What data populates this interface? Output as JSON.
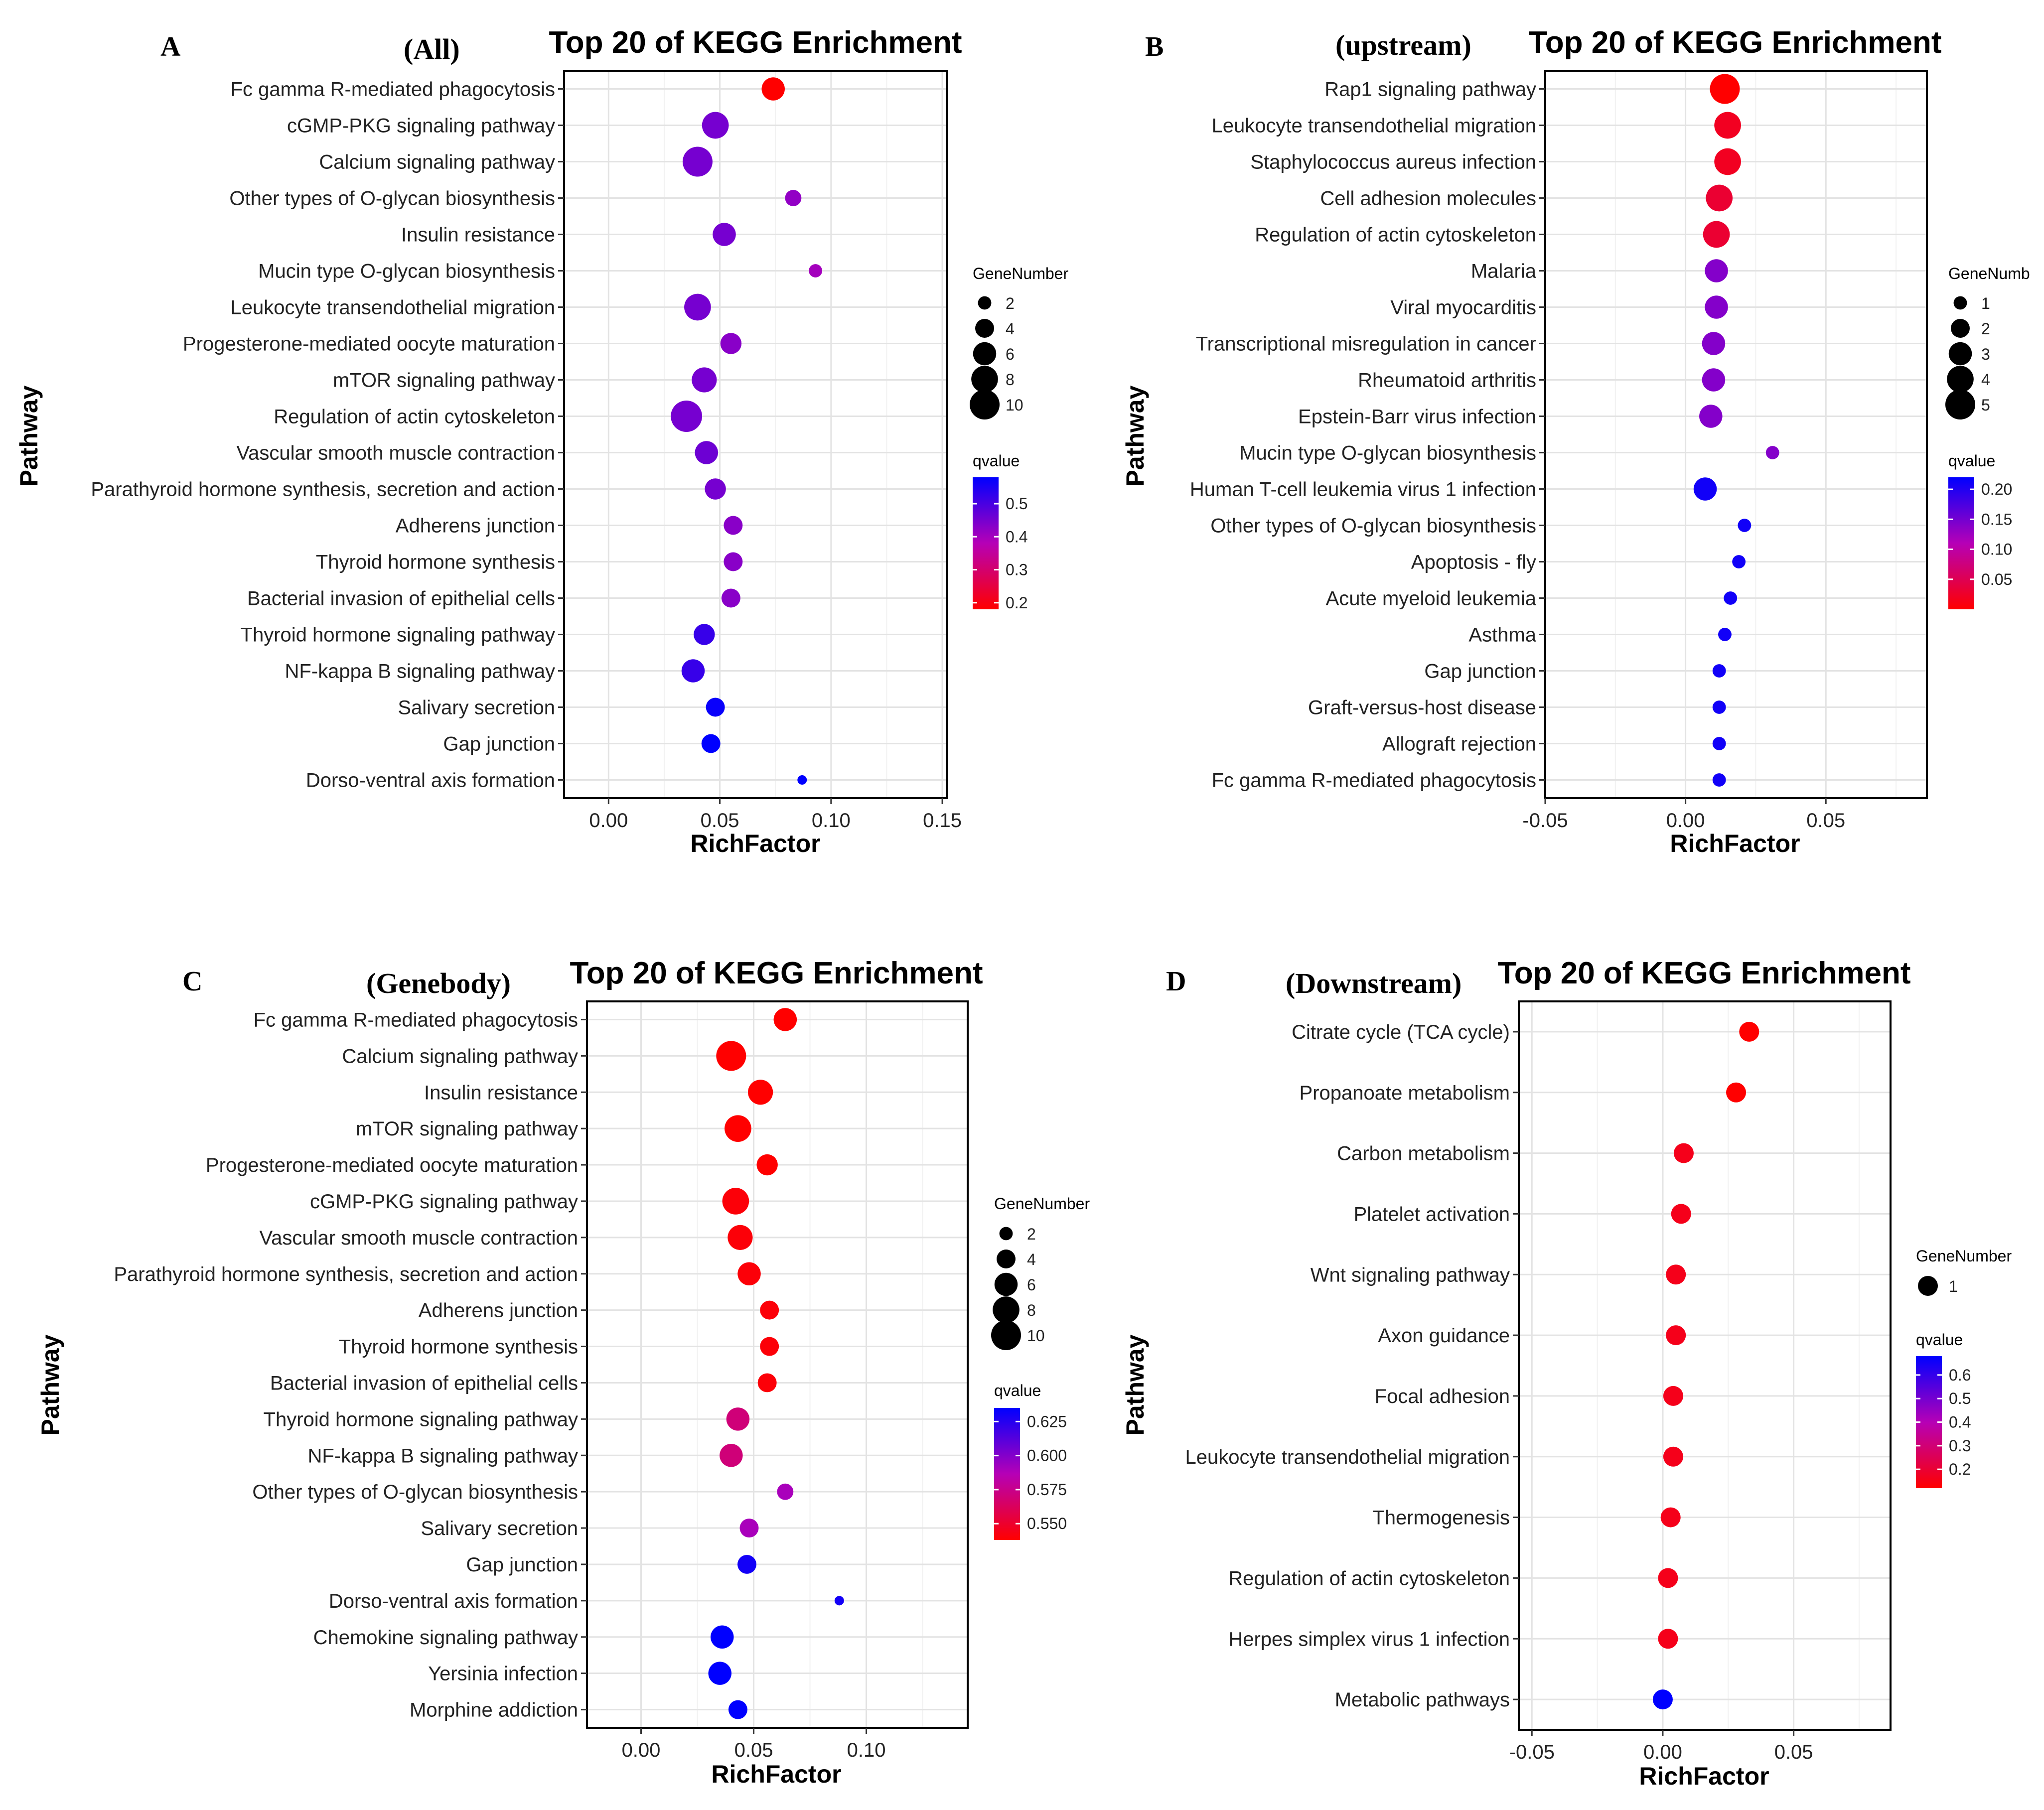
{
  "chart_data": [
    {
      "type": "scatter",
      "panel_letter": "A",
      "panel_subtitle": "(All)",
      "title": "Top 20 of KEGG Enrichment",
      "xlabel": "RichFactor",
      "ylabel": "Pathway",
      "xlim": [
        -0.02,
        0.152
      ],
      "xticks": [
        0.0,
        0.05,
        0.1,
        0.15
      ],
      "xtick_labels": [
        "0.00",
        "0.05",
        "0.10",
        "0.15"
      ],
      "size_legend": {
        "title": "GeneNumber",
        "values": [
          2,
          4,
          6,
          8,
          10
        ],
        "labels": [
          "2",
          "4",
          "6",
          "8",
          "10"
        ],
        "max": 10
      },
      "color_legend": {
        "title": "qvalue",
        "min": 0.18,
        "max": 0.58,
        "ticks": [
          0.2,
          0.3,
          0.4,
          0.5
        ],
        "labels": [
          "0.2",
          "0.3",
          "0.4",
          "0.5"
        ]
      },
      "points": [
        {
          "pathway": "Fc gamma R-mediated phagocytosis",
          "rich": 0.074,
          "gene": 6,
          "q": 0.18
        },
        {
          "pathway": "cGMP-PKG signaling pathway",
          "rich": 0.048,
          "gene": 8,
          "q": 0.45
        },
        {
          "pathway": "Calcium signaling pathway",
          "rich": 0.04,
          "gene": 10,
          "q": 0.45
        },
        {
          "pathway": "Other types of O-glycan biosynthesis",
          "rich": 0.083,
          "gene": 3,
          "q": 0.42
        },
        {
          "pathway": "Insulin resistance",
          "rich": 0.052,
          "gene": 6,
          "q": 0.45
        },
        {
          "pathway": "Mucin type O-glycan biosynthesis",
          "rich": 0.093,
          "gene": 2,
          "q": 0.4
        },
        {
          "pathway": "Leukocyte transendothelial migration",
          "rich": 0.04,
          "gene": 8,
          "q": 0.45
        },
        {
          "pathway": "Progesterone-mediated oocyte maturation",
          "rich": 0.055,
          "gene": 5,
          "q": 0.43
        },
        {
          "pathway": "mTOR signaling pathway",
          "rich": 0.043,
          "gene": 7,
          "q": 0.45
        },
        {
          "pathway": "Regulation of actin cytoskeleton",
          "rich": 0.035,
          "gene": 11,
          "q": 0.45
        },
        {
          "pathway": "Vascular smooth muscle contraction",
          "rich": 0.044,
          "gene": 6,
          "q": 0.46
        },
        {
          "pathway": "Parathyroid hormone synthesis, secretion and action",
          "rich": 0.048,
          "gene": 5,
          "q": 0.45
        },
        {
          "pathway": "Adherens junction",
          "rich": 0.056,
          "gene": 4,
          "q": 0.43
        },
        {
          "pathway": "Thyroid hormone synthesis",
          "rich": 0.056,
          "gene": 4,
          "q": 0.43
        },
        {
          "pathway": "Bacterial invasion of epithelial cells",
          "rich": 0.055,
          "gene": 4,
          "q": 0.43
        },
        {
          "pathway": "Thyroid hormone signaling pathway",
          "rich": 0.043,
          "gene": 5,
          "q": 0.52
        },
        {
          "pathway": "NF-kappa B signaling pathway",
          "rich": 0.038,
          "gene": 6,
          "q": 0.52
        },
        {
          "pathway": "Salivary secretion",
          "rich": 0.048,
          "gene": 4,
          "q": 0.57
        },
        {
          "pathway": "Gap junction",
          "rich": 0.046,
          "gene": 4,
          "q": 0.58
        },
        {
          "pathway": "Dorso-ventral axis formation",
          "rich": 0.087,
          "gene": 1,
          "q": 0.58
        }
      ]
    },
    {
      "type": "scatter",
      "panel_letter": "B",
      "panel_subtitle": "(upstream)",
      "title": "Top 20 of KEGG Enrichment",
      "xlabel": "RichFactor",
      "ylabel": "Pathway",
      "xlim": [
        -0.05,
        0.086
      ],
      "xticks": [
        -0.05,
        0.0,
        0.05
      ],
      "xtick_labels": [
        "-0.05",
        "0.00",
        "0.05"
      ],
      "size_legend": {
        "title": "GeneNumb",
        "values": [
          1,
          2,
          3,
          4,
          5
        ],
        "labels": [
          "1",
          "2",
          "3",
          "4",
          "5"
        ],
        "max": 5
      },
      "color_legend": {
        "title": "qvalue",
        "min": 0.0,
        "max": 0.22,
        "ticks": [
          0.05,
          0.1,
          0.15,
          0.2
        ],
        "labels": [
          "0.05",
          "0.10",
          "0.15",
          "0.20"
        ]
      },
      "points": [
        {
          "pathway": "Rap1 signaling pathway",
          "rich": 0.014,
          "gene": 5,
          "q": 0.0
        },
        {
          "pathway": "Leukocyte transendothelial migration",
          "rich": 0.015,
          "gene": 4,
          "q": 0.02
        },
        {
          "pathway": "Staphylococcus aureus infection",
          "rich": 0.015,
          "gene": 4,
          "q": 0.02
        },
        {
          "pathway": "Cell adhesion molecules",
          "rich": 0.012,
          "gene": 4,
          "q": 0.03
        },
        {
          "pathway": "Regulation of actin cytoskeleton",
          "rich": 0.011,
          "gene": 4,
          "q": 0.03
        },
        {
          "pathway": "Malaria",
          "rich": 0.011,
          "gene": 3,
          "q": 0.14
        },
        {
          "pathway": "Viral myocarditis",
          "rich": 0.011,
          "gene": 3,
          "q": 0.14
        },
        {
          "pathway": "Transcriptional misregulation in cancer",
          "rich": 0.01,
          "gene": 3,
          "q": 0.14
        },
        {
          "pathway": "Rheumatoid arthritis",
          "rich": 0.01,
          "gene": 3,
          "q": 0.14
        },
        {
          "pathway": "Epstein-Barr virus infection",
          "rich": 0.009,
          "gene": 3,
          "q": 0.14
        },
        {
          "pathway": "Mucin type O-glycan biosynthesis",
          "rich": 0.031,
          "gene": 1,
          "q": 0.14
        },
        {
          "pathway": "Human T-cell leukemia virus 1 infection",
          "rich": 0.007,
          "gene": 3,
          "q": 0.21
        },
        {
          "pathway": "Other types of O-glycan biosynthesis",
          "rich": 0.021,
          "gene": 1,
          "q": 0.21
        },
        {
          "pathway": "Apoptosis - fly",
          "rich": 0.019,
          "gene": 1,
          "q": 0.21
        },
        {
          "pathway": "Acute myeloid leukemia",
          "rich": 0.016,
          "gene": 1,
          "q": 0.21
        },
        {
          "pathway": "Asthma",
          "rich": 0.014,
          "gene": 1,
          "q": 0.21
        },
        {
          "pathway": "Gap junction",
          "rich": 0.012,
          "gene": 1,
          "q": 0.21
        },
        {
          "pathway": "Graft-versus-host disease",
          "rich": 0.012,
          "gene": 1,
          "q": 0.21
        },
        {
          "pathway": "Allograft rejection",
          "rich": 0.012,
          "gene": 1,
          "q": 0.21
        },
        {
          "pathway": "Fc gamma R-mediated phagocytosis",
          "rich": 0.012,
          "gene": 1,
          "q": 0.21
        }
      ]
    },
    {
      "type": "scatter",
      "panel_letter": "C",
      "panel_subtitle": "(Genebody)",
      "title": "Top 20 of KEGG Enrichment",
      "xlabel": "RichFactor",
      "ylabel": "Pathway",
      "xlim": [
        -0.024,
        0.145
      ],
      "xticks": [
        0.0,
        0.05,
        0.1
      ],
      "xtick_labels": [
        "0.00",
        "0.05",
        "0.10"
      ],
      "size_legend": {
        "title": "GeneNumber",
        "values": [
          2,
          4,
          6,
          8,
          10
        ],
        "labels": [
          "2",
          "4",
          "6",
          "8",
          "10"
        ],
        "max": 10
      },
      "color_legend": {
        "title": "qvalue",
        "min": 0.538,
        "max": 0.635,
        "ticks": [
          0.55,
          0.575,
          0.6,
          0.625
        ],
        "labels": [
          "0.550",
          "0.575",
          "0.600",
          "0.625"
        ]
      },
      "points": [
        {
          "pathway": "Fc gamma R-mediated phagocytosis",
          "rich": 0.064,
          "gene": 6,
          "q": 0.538
        },
        {
          "pathway": "Calcium signaling pathway",
          "rich": 0.04,
          "gene": 10,
          "q": 0.538
        },
        {
          "pathway": "Insulin resistance",
          "rich": 0.053,
          "gene": 7,
          "q": 0.538
        },
        {
          "pathway": "mTOR signaling pathway",
          "rich": 0.043,
          "gene": 8,
          "q": 0.538
        },
        {
          "pathway": "Progesterone-mediated oocyte maturation",
          "rich": 0.056,
          "gene": 5,
          "q": 0.538
        },
        {
          "pathway": "cGMP-PKG signaling pathway",
          "rich": 0.042,
          "gene": 8,
          "q": 0.54
        },
        {
          "pathway": "Vascular smooth muscle contraction",
          "rich": 0.044,
          "gene": 7,
          "q": 0.54
        },
        {
          "pathway": "Parathyroid hormone synthesis, secretion and action",
          "rich": 0.048,
          "gene": 6,
          "q": 0.54
        },
        {
          "pathway": "Adherens junction",
          "rich": 0.057,
          "gene": 4,
          "q": 0.54
        },
        {
          "pathway": "Thyroid hormone synthesis",
          "rich": 0.057,
          "gene": 4,
          "q": 0.54
        },
        {
          "pathway": "Bacterial invasion of epithelial cells",
          "rich": 0.056,
          "gene": 4,
          "q": 0.54
        },
        {
          "pathway": "Thyroid hormone signaling pathway",
          "rich": 0.043,
          "gene": 6,
          "q": 0.57
        },
        {
          "pathway": "NF-kappa B signaling pathway",
          "rich": 0.04,
          "gene": 6,
          "q": 0.57
        },
        {
          "pathway": "Other types of O-glycan biosynthesis",
          "rich": 0.064,
          "gene": 3,
          "q": 0.59
        },
        {
          "pathway": "Salivary secretion",
          "rich": 0.048,
          "gene": 4,
          "q": 0.59
        },
        {
          "pathway": "Gap junction",
          "rich": 0.047,
          "gene": 4,
          "q": 0.63
        },
        {
          "pathway": "Dorso-ventral axis formation",
          "rich": 0.088,
          "gene": 1,
          "q": 0.63
        },
        {
          "pathway": "Chemokine signaling pathway",
          "rich": 0.036,
          "gene": 6,
          "q": 0.635
        },
        {
          "pathway": "Yersinia infection",
          "rich": 0.035,
          "gene": 6,
          "q": 0.635
        },
        {
          "pathway": "Morphine addiction",
          "rich": 0.043,
          "gene": 4,
          "q": 0.635
        }
      ]
    },
    {
      "type": "scatter",
      "panel_letter": "D",
      "panel_subtitle": "(Downstream)",
      "title": "Top 20 of KEGG Enrichment",
      "xlabel": "RichFactor",
      "ylabel": "Pathway",
      "xlim": [
        -0.055,
        0.087
      ],
      "xticks": [
        -0.05,
        0.0,
        0.05
      ],
      "xtick_labels": [
        "-0.05",
        "0.00",
        "0.05"
      ],
      "size_legend": {
        "title": "GeneNumber",
        "values": [
          1
        ],
        "labels": [
          "1"
        ],
        "max": 1
      },
      "color_legend": {
        "title": "qvalue",
        "min": 0.12,
        "max": 0.68,
        "ticks": [
          0.2,
          0.3,
          0.4,
          0.5,
          0.6
        ],
        "labels": [
          "0.2",
          "0.3",
          "0.4",
          "0.5",
          "0.6"
        ]
      },
      "points": [
        {
          "pathway": "Citrate cycle (TCA cycle)",
          "rich": 0.033,
          "gene": 1,
          "q": 0.12
        },
        {
          "pathway": "Propanoate metabolism",
          "rich": 0.028,
          "gene": 1,
          "q": 0.12
        },
        {
          "pathway": "Carbon metabolism",
          "rich": 0.008,
          "gene": 1,
          "q": 0.16
        },
        {
          "pathway": "Platelet activation",
          "rich": 0.007,
          "gene": 1,
          "q": 0.16
        },
        {
          "pathway": "Wnt signaling pathway",
          "rich": 0.005,
          "gene": 1,
          "q": 0.16
        },
        {
          "pathway": "Axon guidance",
          "rich": 0.005,
          "gene": 1,
          "q": 0.16
        },
        {
          "pathway": "Focal adhesion",
          "rich": 0.004,
          "gene": 1,
          "q": 0.16
        },
        {
          "pathway": "Leukocyte transendothelial migration",
          "rich": 0.004,
          "gene": 1,
          "q": 0.16
        },
        {
          "pathway": "Thermogenesis",
          "rich": 0.003,
          "gene": 1,
          "q": 0.16
        },
        {
          "pathway": "Regulation of actin cytoskeleton",
          "rich": 0.002,
          "gene": 1,
          "q": 0.16
        },
        {
          "pathway": "Herpes simplex virus 1 infection",
          "rich": 0.002,
          "gene": 1,
          "q": 0.16
        },
        {
          "pathway": "Metabolic pathways",
          "rich": 0.0,
          "gene": 1,
          "q": 0.68
        }
      ]
    }
  ]
}
